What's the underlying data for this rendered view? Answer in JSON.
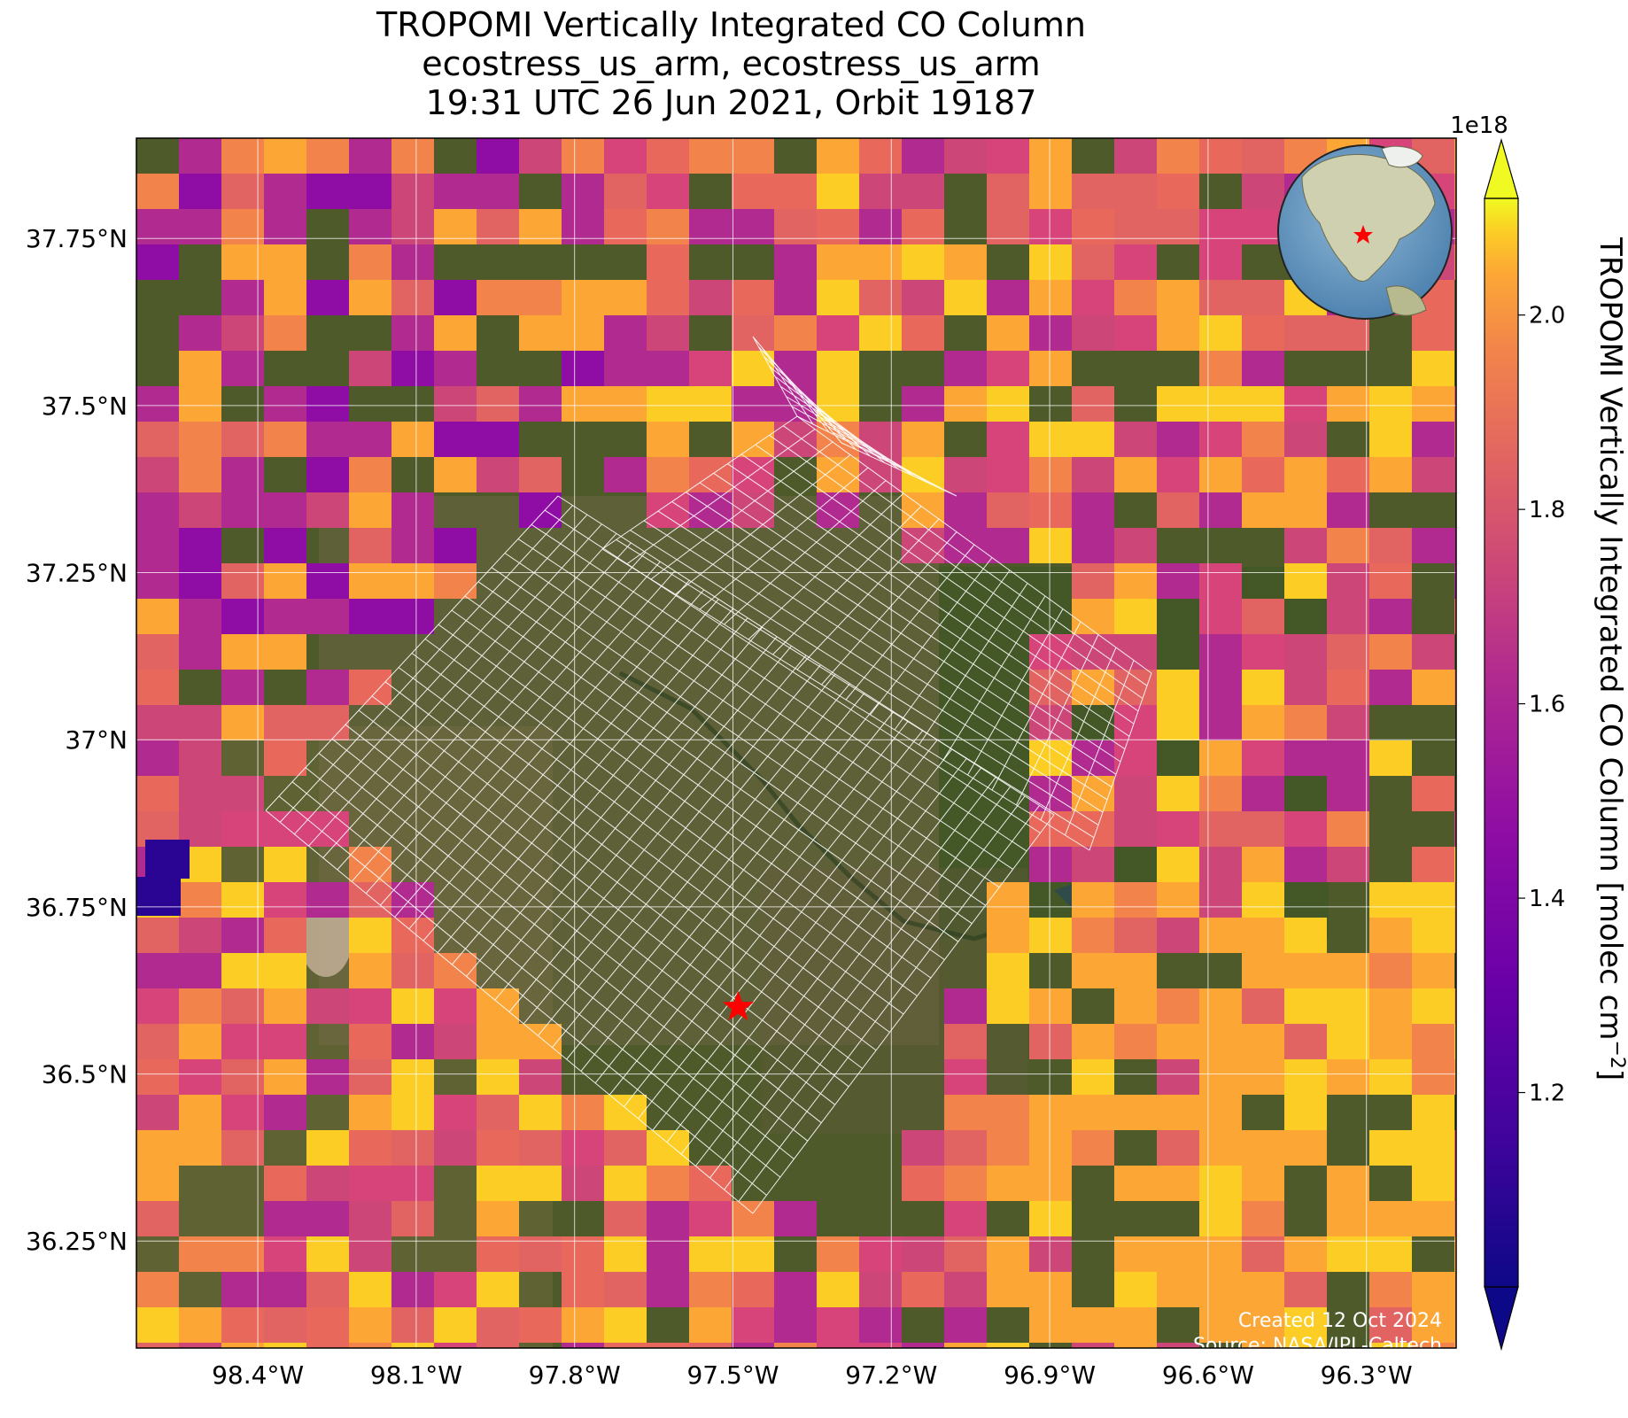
{
  "title": {
    "line1": "TROPOMI Vertically Integrated CO Column",
    "line2": "ecostress_us_arm, ecostress_us_arm",
    "line3": "19:31 UTC 26 Jun 2021, Orbit 19187"
  },
  "map": {
    "lon_range": [
      -98.63,
      -96.13
    ],
    "lat_range": [
      36.09,
      37.9
    ],
    "lon_ticks": [
      {
        "value": -98.4,
        "label": "98.4°W"
      },
      {
        "value": -98.1,
        "label": "98.1°W"
      },
      {
        "value": -97.8,
        "label": "97.8°W"
      },
      {
        "value": -97.5,
        "label": "97.5°W"
      },
      {
        "value": -97.2,
        "label": "97.2°W"
      },
      {
        "value": -96.9,
        "label": "96.9°W"
      },
      {
        "value": -96.6,
        "label": "96.6°W"
      },
      {
        "value": -96.3,
        "label": "96.3°W"
      }
    ],
    "lat_ticks": [
      {
        "value": 37.75,
        "label": "37.75°N"
      },
      {
        "value": 37.5,
        "label": "37.5°N"
      },
      {
        "value": 37.25,
        "label": "37.25°N"
      },
      {
        "value": 37.0,
        "label": "37°N"
      },
      {
        "value": 36.75,
        "label": "36.75°N"
      },
      {
        "value": 36.5,
        "label": "36.5°N"
      },
      {
        "value": 36.25,
        "label": "36.25°N"
      }
    ],
    "gridlines": true,
    "site_marker": {
      "lon": -97.49,
      "lat": 36.6,
      "symbol": "star",
      "color": "#ff0000"
    },
    "background": "satellite imagery",
    "overlay": "ECOSTRESS footprint grid",
    "inset_globe": {
      "region": "North America",
      "marker_color": "#ff0000"
    }
  },
  "credits": {
    "created": "Created 12 Oct 2024",
    "source": "Source: NASA/JPL-Caltech"
  },
  "colorbar": {
    "label": "TROPOMI Vertically Integrated CO Column [molec cm",
    "label_sup": "−2",
    "label_end": "]",
    "multiplier": "1e18",
    "colormap": "plasma",
    "range": [
      1.0,
      2.12
    ],
    "ticks": [
      "1.2",
      "1.4",
      "1.6",
      "1.8",
      "2.0"
    ],
    "extend": "both"
  },
  "chart_data": {
    "type": "heatmap",
    "title": "TROPOMI Vertically Integrated CO Column",
    "subtitle": "ecostress_us_arm, ecostress_us_arm — 19:31 UTC 26 Jun 2021, Orbit 19187",
    "xlabel": "",
    "ylabel": "",
    "units": "molec cm^-2 (×1e18)",
    "x_range": [
      -98.63,
      -96.13
    ],
    "y_range": [
      36.09,
      37.9
    ],
    "value_range": [
      1.0,
      2.12
    ],
    "colormap": "plasma"
  }
}
